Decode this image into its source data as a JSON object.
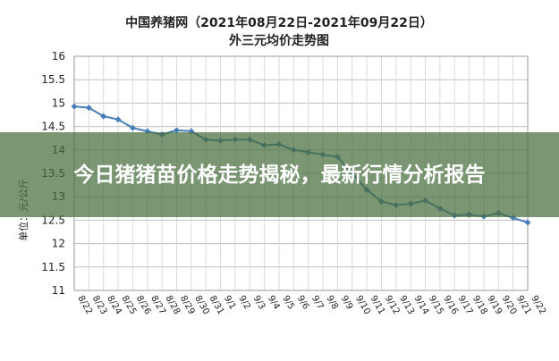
{
  "chart_data": {
    "type": "line",
    "title": "中国养猪网（2021年08月22日-2021年09月22日）",
    "subtitle": "外三元均价走势图",
    "y_label": "单位：元/公斤",
    "categories": [
      "8/22",
      "8/23",
      "8/24",
      "8/25",
      "8/26",
      "8/27",
      "8/28",
      "8/29",
      "8/30",
      "8/31",
      "9/1",
      "9/2",
      "9/3",
      "9/4",
      "9/5",
      "9/6",
      "9/7",
      "9/8",
      "9/9",
      "9/10",
      "9/11",
      "9/12",
      "9/13",
      "9/14",
      "9/15",
      "9/16",
      "9/17",
      "9/18",
      "9/19",
      "9/20",
      "9/21",
      "9/22"
    ],
    "series": [
      {
        "name": "外三元均价",
        "color": "#4a7ebb",
        "values": [
          14.93,
          14.9,
          14.72,
          14.65,
          14.47,
          14.4,
          14.33,
          14.42,
          14.4,
          14.22,
          14.2,
          14.22,
          14.22,
          14.1,
          14.12,
          14.0,
          13.95,
          13.9,
          13.85,
          13.5,
          13.15,
          12.9,
          12.82,
          12.85,
          12.92,
          12.75,
          12.6,
          12.62,
          12.58,
          12.65,
          12.55,
          12.45
        ]
      }
    ],
    "ylim": [
      11,
      16
    ],
    "yticks": [
      11,
      11.5,
      12,
      12.5,
      13,
      13.5,
      14,
      14.5,
      15,
      15.5,
      16
    ],
    "grid": true
  },
  "headline": "今日猪猪苗价格走势揭秘，最新行情分析报告"
}
